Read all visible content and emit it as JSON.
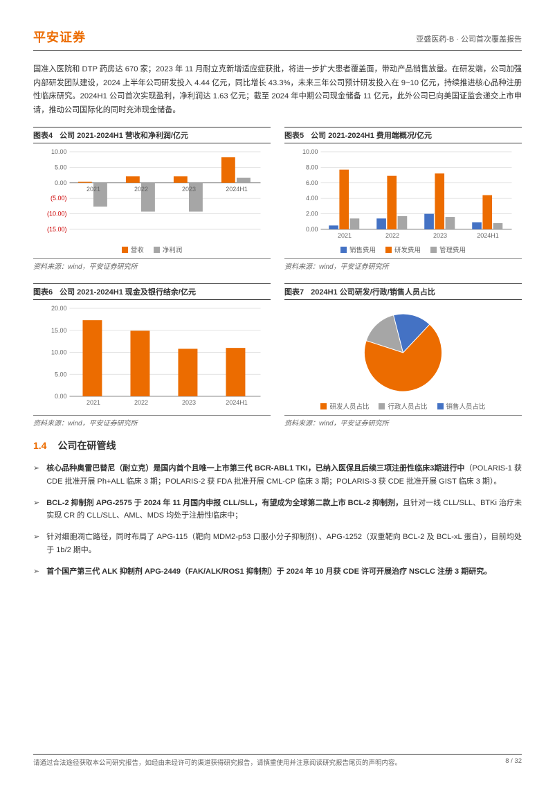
{
  "header": {
    "logo": "平安证券",
    "right": "亚盛医药-B · 公司首次覆盖报告"
  },
  "intro": "国准入医院和 DTP 药房达 670 家；2023 年 11 月耐立克新增适应症获批，将进一步扩大患者覆盖面，带动产品销售放量。在研发端，公司加强内部研发团队建设，2024 上半年公司研发投入 4.44 亿元，同比增长 43.3%，未来三年公司预计研发投入在 9~10 亿元，持续推进核心品种注册性临床研究。2024H1 公司首次实现盈利，净利润达 1.63 亿元；截至 2024 年中期公司现金储备 11 亿元，此外公司已向美国证监会递交上市申请，推动公司国际化的同时充沛现金储备。",
  "chart4": {
    "title_num": "图表4",
    "title_text": "公司 2021-2024H1 营收和净利润/亿元",
    "type": "bar",
    "categories": [
      "2021",
      "2022",
      "2023",
      "2024H1"
    ],
    "series": [
      {
        "name": "营收",
        "color": "#ec6c00",
        "values": [
          0.3,
          2.1,
          2.1,
          8.2
        ]
      },
      {
        "name": "净利润",
        "color": "#a6a6a6",
        "values": [
          -7.7,
          -9.3,
          -9.3,
          1.6
        ]
      }
    ],
    "ylim": [
      -15,
      10
    ],
    "ytick_step": 5,
    "background": "#ffffff",
    "grid_color": "#d9d9d9",
    "bar_width": 0.32,
    "label_fontsize": 9,
    "source": "资料来源：wind，平安证券研究所"
  },
  "chart5": {
    "title_num": "图表5",
    "title_text": "公司 2021-2024H1 费用端概况/亿元",
    "type": "bar",
    "categories": [
      "2021",
      "2022",
      "2023",
      "2024H1"
    ],
    "series": [
      {
        "name": "销售费用",
        "color": "#4472c4",
        "values": [
          0.5,
          1.4,
          2.0,
          0.9
        ]
      },
      {
        "name": "研发费用",
        "color": "#ec6c00",
        "values": [
          7.7,
          6.9,
          7.2,
          4.4
        ]
      },
      {
        "name": "管理费用",
        "color": "#a6a6a6",
        "values": [
          1.4,
          1.7,
          1.6,
          0.8
        ]
      }
    ],
    "ylim": [
      0,
      10
    ],
    "ytick_step": 2,
    "background": "#ffffff",
    "grid_color": "#d9d9d9",
    "bar_width": 0.22,
    "label_fontsize": 9,
    "source": "资料来源：wind，平安证券研究所"
  },
  "chart6": {
    "title_num": "图表6",
    "title_text": "公司 2021-2024H1 现金及银行结余/亿元",
    "type": "bar",
    "categories": [
      "2021",
      "2022",
      "2023",
      "2024H1"
    ],
    "series": [
      {
        "name": "现金及银行结余",
        "color": "#ec6c00",
        "values": [
          17.3,
          14.9,
          10.8,
          11.0
        ]
      }
    ],
    "ylim": [
      0,
      20
    ],
    "ytick_step": 5,
    "background": "#ffffff",
    "grid_color": "#d9d9d9",
    "bar_width": 0.45,
    "label_fontsize": 9,
    "source": "资料来源：wind，平安证券研究所"
  },
  "chart7": {
    "title_num": "图表7",
    "title_text": "2024H1 公司研发/行政/销售人员占比",
    "type": "pie",
    "slices": [
      {
        "name": "研发人员占比",
        "color": "#ec6c00",
        "value": 68
      },
      {
        "name": "行政人员占比",
        "color": "#a6a6a6",
        "value": 16
      },
      {
        "name": "销售人员占比",
        "color": "#4472c4",
        "value": 16
      }
    ],
    "background": "#ffffff",
    "label_fontsize": 9,
    "source": "资料来源：wind，平安证券研究所"
  },
  "section": {
    "num": "1.4",
    "title": "公司在研管线",
    "bullets": [
      {
        "bold": "核心品种奥雷巴替尼（耐立克）是国内首个且唯一上市第三代 BCR-ABL1 TKI，已纳入医保且后续三项注册性临床3期进行中",
        "rest": "（POLARIS-1 获 CDE 批准开展 Ph+ALL 临床 3 期；POLARIS-2 获 FDA 批准开展 CML-CP 临床 3 期；POLARIS-3 获 CDE 批准开展 GIST 临床 3 期）。"
      },
      {
        "bold": "BCL-2 抑制剂 APG-2575 于 2024 年 11 月国内申报 CLL/SLL，有望成为全球第二款上市 BCL-2 抑制剂，",
        "rest": "且针对一线 CLL/SLL、BTKi 治疗未实现 CR 的 CLL/SLL、AML、MDS 均处于注册性临床中；"
      },
      {
        "bold": "",
        "rest": "针对细胞凋亡路径，同时布局了 APG-115（靶向 MDM2-p53 口服小分子抑制剂）、APG-1252（双重靶向 BCL-2 及 BCL-xL 蛋白），目前均处于 1b/2 期中。"
      },
      {
        "bold": "首个国产第三代 ALK 抑制剂 APG-2449（FAK/ALK/ROS1 抑制剂）于 2024 年 10 月获 CDE 许可开展治疗 NSCLC 注册 3 期研究。",
        "rest": ""
      }
    ]
  },
  "footer": {
    "left": "请通过合法途径获取本公司研究报告，如经由未经许可的渠道获得研究报告，请慎重使用并注意阅读研究报告尾页的声明内容。",
    "right": "8 / 32"
  }
}
